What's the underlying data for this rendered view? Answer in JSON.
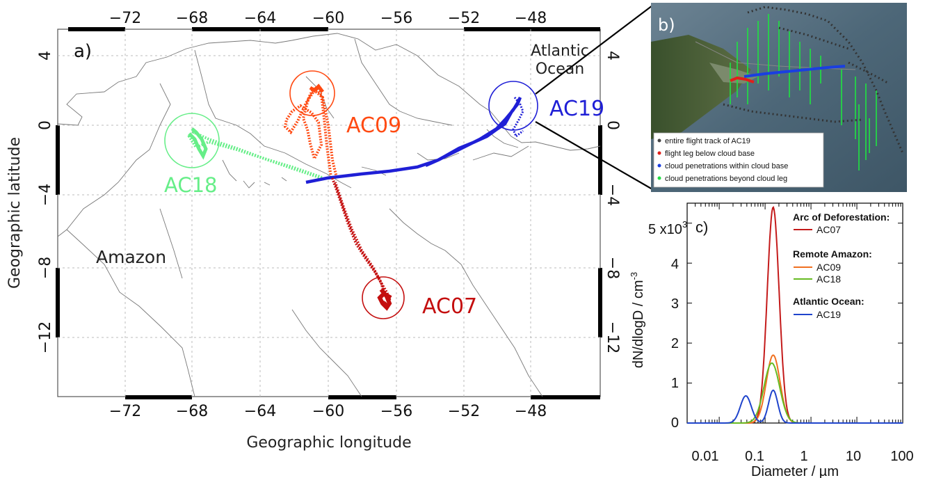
{
  "panel_a": {
    "label": "a)",
    "xlabel": "Geographic longitude",
    "ylabel": "Geographic latitude",
    "lon_ticks": [
      "−72",
      "−68",
      "−64",
      "−60",
      "−56",
      "−52",
      "−48"
    ],
    "lat_ticks": [
      "4",
      "0",
      "−4",
      "−8",
      "−12"
    ],
    "region_amazon": "Amazon",
    "region_ocean_line1": "Atlantic",
    "region_ocean_line2": "Ocean",
    "flights": [
      {
        "id": "AC09",
        "color": "#ff4a12"
      },
      {
        "id": "AC18",
        "color": "#66ee88"
      },
      {
        "id": "AC19",
        "color": "#1f1fd6"
      },
      {
        "id": "AC07",
        "color": "#c40e0e"
      }
    ]
  },
  "panel_b": {
    "label": "b)",
    "legend": [
      {
        "text": "entire flight track of AC19",
        "color": "#444444"
      },
      {
        "text": "flight leg below cloud base",
        "color": "#e0201a"
      },
      {
        "text": "cloud penetrations within cloud base",
        "color": "#1a3fe0"
      },
      {
        "text": "cloud penetrations beyond cloud leg",
        "color": "#22dd44"
      }
    ]
  },
  "panel_c": {
    "label": "c)",
    "chart_data": {
      "type": "line",
      "xlabel": "Diameter / µm",
      "ylabel": "dN/dlogD / cm",
      "ylabel_exp": "-3",
      "x_scale": "log",
      "xlim": [
        0.002,
        100
      ],
      "ylim": [
        0,
        5500
      ],
      "x_ticks": [
        "0.01",
        "0.1",
        "1",
        "10",
        "100"
      ],
      "y_ticks": [
        "0",
        "1",
        "2",
        "3",
        "4"
      ],
      "y_top_tick": "5 x10",
      "y_top_exp": "3",
      "legend_groups": [
        {
          "title": "Arc of Deforestation:",
          "series": [
            "AC07"
          ]
        },
        {
          "title": "Remote Amazon:",
          "series": [
            "AC09",
            "AC18"
          ]
        },
        {
          "title": "Atlantic Ocean:",
          "series": [
            "AC19"
          ]
        }
      ],
      "series": [
        {
          "name": "AC07",
          "color": "#c41a1a",
          "modes": [
            {
              "d": 0.15,
              "n": 5400,
              "w": 0.13
            }
          ]
        },
        {
          "name": "AC09",
          "color": "#f07020",
          "modes": [
            {
              "d": 0.15,
              "n": 1700,
              "w": 0.15
            }
          ]
        },
        {
          "name": "AC18",
          "color": "#66bb22",
          "modes": [
            {
              "d": 0.14,
              "n": 1500,
              "w": 0.17
            }
          ]
        },
        {
          "name": "AC19",
          "color": "#1f44cc",
          "modes": [
            {
              "d": 0.038,
              "n": 680,
              "w": 0.12
            },
            {
              "d": 0.15,
              "n": 820,
              "w": 0.1
            }
          ]
        }
      ]
    }
  }
}
